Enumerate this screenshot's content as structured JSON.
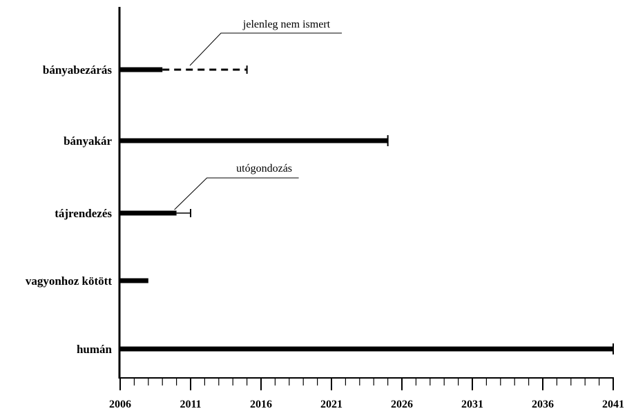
{
  "chart_data": {
    "type": "gantt",
    "x_ticks": [
      "2006",
      "2011",
      "2016",
      "2021",
      "2026",
      "2031",
      "2036",
      "2041"
    ],
    "xlim": [
      2006,
      2041
    ],
    "minor_tick_step_years": 1,
    "grid": false,
    "bars": [
      {
        "label": "bányabezárás",
        "start": 2006,
        "end": 2009,
        "extension": {
          "end": 2015,
          "style": "dashed",
          "capped": true
        }
      },
      {
        "label": "bányakár",
        "start": 2006,
        "end": 2025,
        "capped": true
      },
      {
        "label": "tájrendezés",
        "start": 2006,
        "end": 2010,
        "extension": {
          "end": 2011,
          "style": "thin",
          "capped": true
        }
      },
      {
        "label": "vagyonhoz kötött",
        "start": 2006,
        "end": 2008
      },
      {
        "label": "humán",
        "start": 2006,
        "end": 2041,
        "capped": true
      }
    ],
    "annotations": [
      {
        "text": "jelenleg nem ismert",
        "bar": "bányabezárás",
        "at": 2011
      },
      {
        "text": "utógondozás",
        "bar": "tájrendezés",
        "at": 2010
      }
    ]
  }
}
